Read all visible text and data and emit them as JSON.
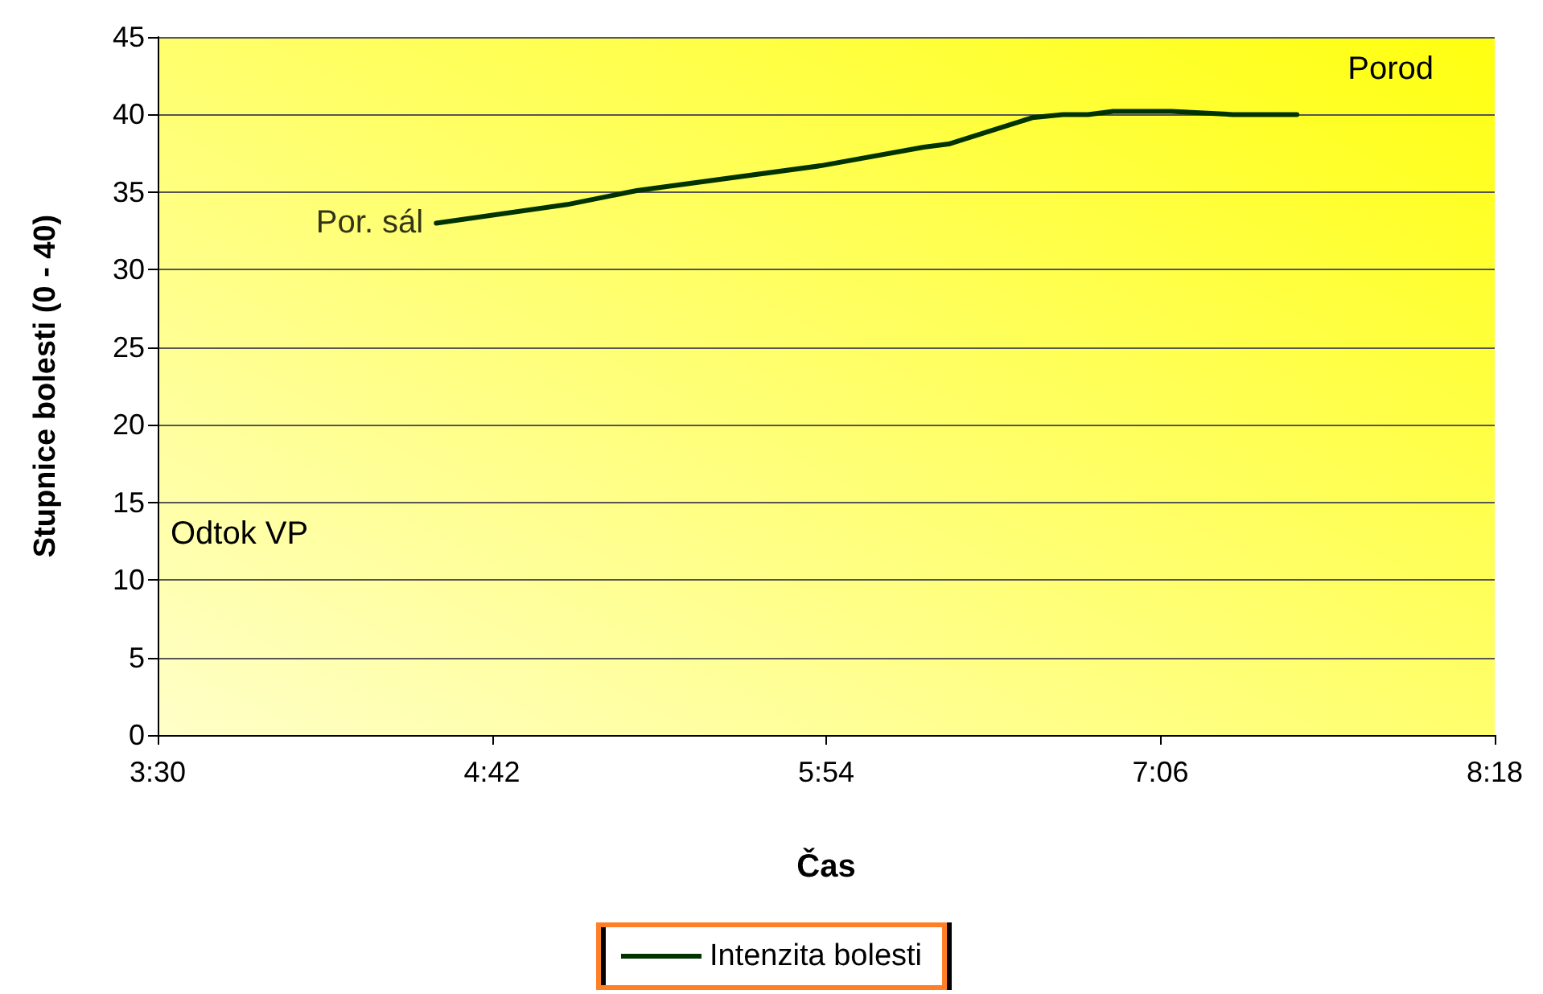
{
  "chart_data": {
    "type": "line",
    "xlabel": "Čas",
    "ylabel": "Stupnice bolesti (0 - 40)",
    "x": [
      4.5,
      4.97,
      5.22,
      5.88,
      6.25,
      6.34,
      6.5,
      6.64,
      6.75,
      6.84,
      6.93,
      7.14,
      7.36,
      7.59
    ],
    "series": [
      {
        "name": "Intenzita bolesti",
        "color": "#003300",
        "values": [
          33,
          34.2,
          35.1,
          36.7,
          37.9,
          38.1,
          39,
          39.8,
          40,
          40,
          40.2,
          40.2,
          40,
          40
        ]
      }
    ],
    "xlim": [
      3.5,
      8.3
    ],
    "xticks": [
      {
        "value": 3.5,
        "label": "3:30"
      },
      {
        "value": 4.7,
        "label": "4:42"
      },
      {
        "value": 5.9,
        "label": "5:54"
      },
      {
        "value": 7.1,
        "label": "7:06"
      },
      {
        "value": 8.3,
        "label": "8:18"
      }
    ],
    "ylim": [
      0,
      45
    ],
    "yticks": [
      0,
      5,
      10,
      15,
      20,
      25,
      30,
      35,
      40,
      45
    ],
    "annotations": [
      {
        "text": "Por. sál",
        "x": 4.5,
        "y": 33
      },
      "Odtok VP",
      "Porod"
    ],
    "grid": "y",
    "legend": "bottom",
    "marker": "none",
    "line_style": "solid"
  }
}
